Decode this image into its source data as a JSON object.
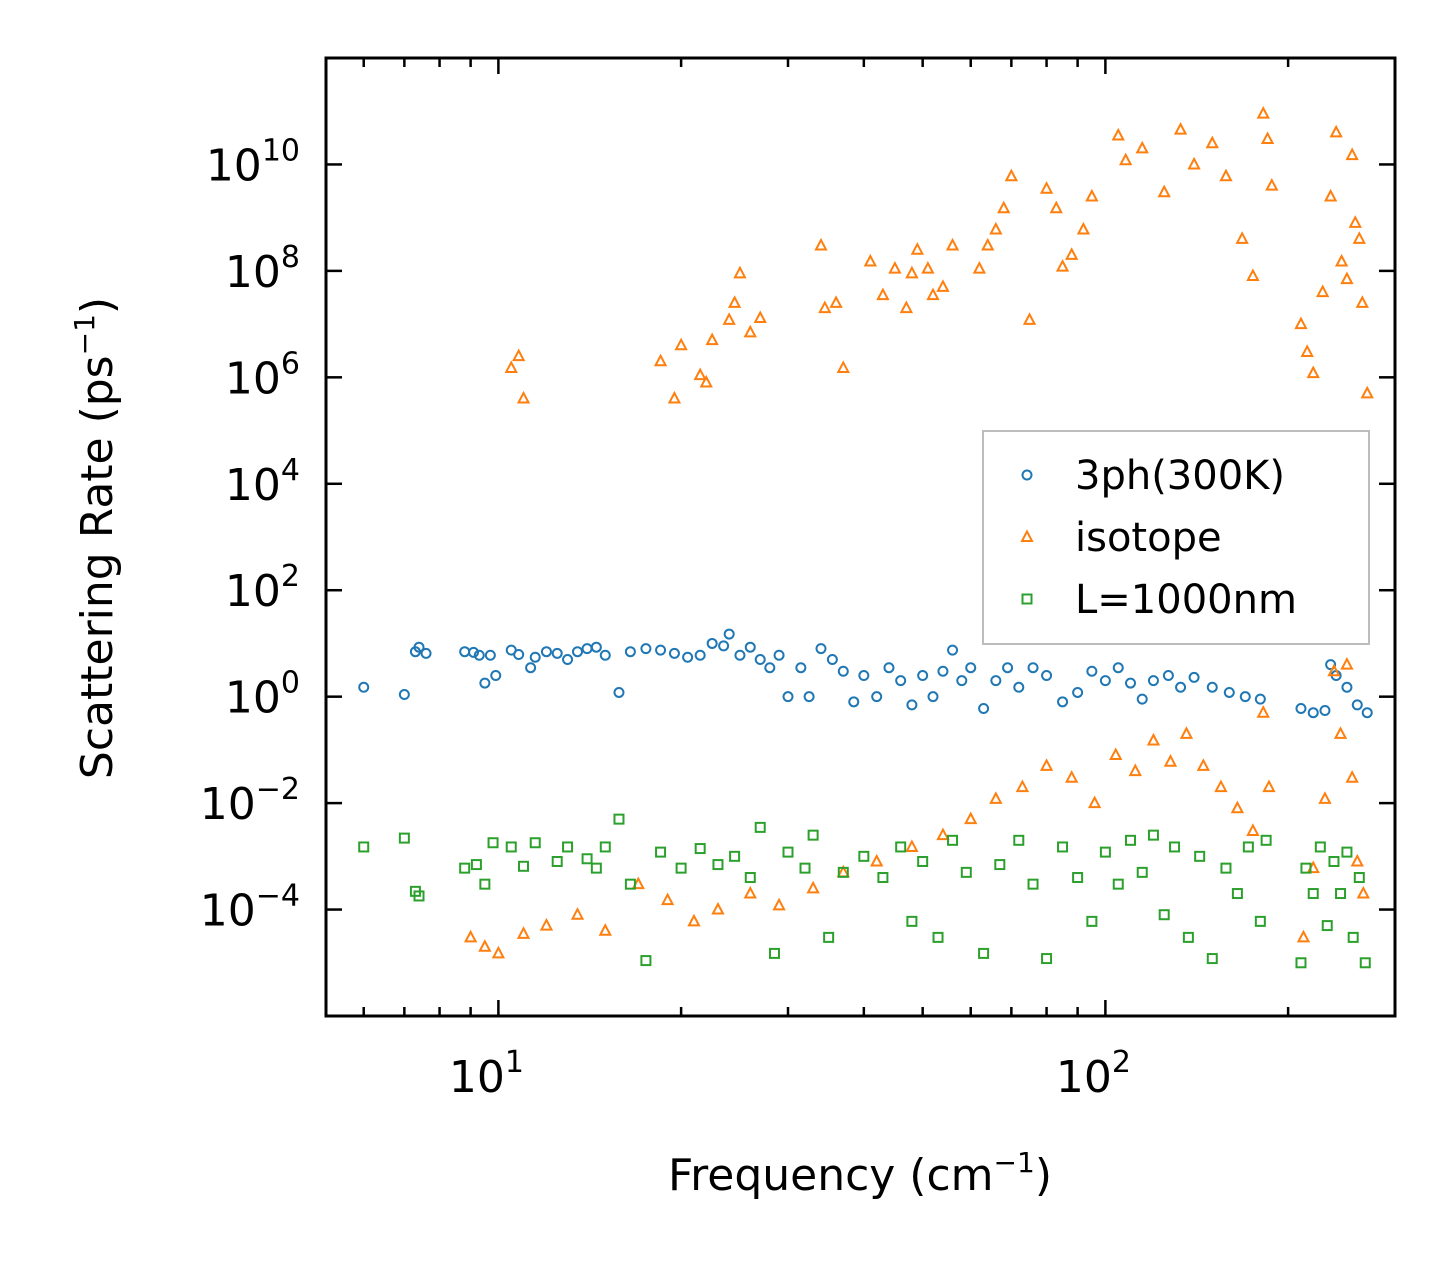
{
  "chart_data": {
    "type": "scatter",
    "title": "",
    "xlabel": "Frequency (cm",
    "xlabel_sup": "−1",
    "xlabel_tail": ")",
    "ylabel": "Scattering Rate (ps",
    "ylabel_sup": "−1",
    "ylabel_tail": ")",
    "xscale": "log",
    "yscale": "log",
    "xlim": [
      5.2,
      300
    ],
    "ylim": [
      1e-06,
      1000000000000.0
    ],
    "x_ticks": [
      {
        "base": "10",
        "exp": "1",
        "value": 10
      },
      {
        "base": "10",
        "exp": "2",
        "value": 100
      }
    ],
    "y_ticks": [
      {
        "base": "10",
        "exp": "10",
        "value": 10000000000.0
      },
      {
        "base": "10",
        "exp": "8",
        "value": 100000000.0
      },
      {
        "base": "10",
        "exp": "6",
        "value": 1000000.0
      },
      {
        "base": "10",
        "exp": "4",
        "value": 10000.0
      },
      {
        "base": "10",
        "exp": "2",
        "value": 100.0
      },
      {
        "base": "10",
        "exp": "0",
        "value": 1
      },
      {
        "base": "10",
        "exp": "−2",
        "value": 0.01
      },
      {
        "base": "10",
        "exp": "−4",
        "value": 0.0001
      }
    ],
    "legend_position": "center-right",
    "series": [
      {
        "name": "3ph(300K)",
        "marker": "circle",
        "color": "#1f77b4",
        "points": [
          [
            6.0,
            1.5
          ],
          [
            7.0,
            1.1
          ],
          [
            7.3,
            7.0
          ],
          [
            7.4,
            8.5
          ],
          [
            7.6,
            6.5
          ],
          [
            8.8,
            7.0
          ],
          [
            9.1,
            6.8
          ],
          [
            9.3,
            6.0
          ],
          [
            9.5,
            1.8
          ],
          [
            9.7,
            6.0
          ],
          [
            9.9,
            2.5
          ],
          [
            10.5,
            7.5
          ],
          [
            10.8,
            6.2
          ],
          [
            11.3,
            3.5
          ],
          [
            11.5,
            5.5
          ],
          [
            12.0,
            7.0
          ],
          [
            12.5,
            6.5
          ],
          [
            13.0,
            5.0
          ],
          [
            13.5,
            7.0
          ],
          [
            14.0,
            8.0
          ],
          [
            14.5,
            8.5
          ],
          [
            15.0,
            6.0
          ],
          [
            15.8,
            1.2
          ],
          [
            16.5,
            7.0
          ],
          [
            17.5,
            8.0
          ],
          [
            18.5,
            7.5
          ],
          [
            19.5,
            6.5
          ],
          [
            20.5,
            5.5
          ],
          [
            21.5,
            6.0
          ],
          [
            22.5,
            10.0
          ],
          [
            23.5,
            9.0
          ],
          [
            24.0,
            15.0
          ],
          [
            25.0,
            6.0
          ],
          [
            26.0,
            8.5
          ],
          [
            27.0,
            5.0
          ],
          [
            28.0,
            3.5
          ],
          [
            29.0,
            6.0
          ],
          [
            30.0,
            1.0
          ],
          [
            31.5,
            3.5
          ],
          [
            32.5,
            1.0
          ],
          [
            34.0,
            8.0
          ],
          [
            35.5,
            5.0
          ],
          [
            37.0,
            3.0
          ],
          [
            38.5,
            0.8
          ],
          [
            40.0,
            2.5
          ],
          [
            42.0,
            1.0
          ],
          [
            44.0,
            3.5
          ],
          [
            46.0,
            2.0
          ],
          [
            48.0,
            0.7
          ],
          [
            50.0,
            2.5
          ],
          [
            52.0,
            1.0
          ],
          [
            54.0,
            3.0
          ],
          [
            56.0,
            7.5
          ],
          [
            58.0,
            2.0
          ],
          [
            60.0,
            3.5
          ],
          [
            63.0,
            0.6
          ],
          [
            66.0,
            2.0
          ],
          [
            69.0,
            3.5
          ],
          [
            72.0,
            1.5
          ],
          [
            76.0,
            3.5
          ],
          [
            80.0,
            2.5
          ],
          [
            85.0,
            0.8
          ],
          [
            90.0,
            1.2
          ],
          [
            95.0,
            3.0
          ],
          [
            100.0,
            2.0
          ],
          [
            105.0,
            3.5
          ],
          [
            110.0,
            1.8
          ],
          [
            115.0,
            0.9
          ],
          [
            120.0,
            2.0
          ],
          [
            127.0,
            2.5
          ],
          [
            133.0,
            1.5
          ],
          [
            140.0,
            2.3
          ],
          [
            150.0,
            1.5
          ],
          [
            160.0,
            1.2
          ],
          [
            170.0,
            1.0
          ],
          [
            180.0,
            0.9
          ],
          [
            210.0,
            0.6
          ],
          [
            220.0,
            0.5
          ],
          [
            230.0,
            0.55
          ],
          [
            235.0,
            4.0
          ],
          [
            240.0,
            2.5
          ],
          [
            250.0,
            1.5
          ],
          [
            260.0,
            0.7
          ],
          [
            270.0,
            0.5
          ]
        ]
      },
      {
        "name": "isotope",
        "marker": "triangle",
        "color": "#ff7f0e",
        "points": [
          [
            10.5,
            1500000.0
          ],
          [
            10.8,
            2500000.0
          ],
          [
            11.0,
            400000.0
          ],
          [
            18.5,
            2000000.0
          ],
          [
            19.5,
            400000.0
          ],
          [
            20.0,
            4000000.0
          ],
          [
            21.5,
            1100000.0
          ],
          [
            22.0,
            800000.0
          ],
          [
            22.5,
            5000000.0
          ],
          [
            24.0,
            12000000.0
          ],
          [
            24.5,
            25000000.0
          ],
          [
            25.0,
            90000000.0
          ],
          [
            26.0,
            7000000.0
          ],
          [
            27.0,
            13000000.0
          ],
          [
            34.0,
            300000000.0
          ],
          [
            34.5,
            20000000.0
          ],
          [
            36.0,
            25000000.0
          ],
          [
            37.0,
            1500000.0
          ],
          [
            41.0,
            150000000.0
          ],
          [
            43.0,
            35000000.0
          ],
          [
            45.0,
            110000000.0
          ],
          [
            47.0,
            20000000.0
          ],
          [
            48.0,
            90000000.0
          ],
          [
            49.0,
            250000000.0
          ],
          [
            51.0,
            110000000.0
          ],
          [
            52.0,
            35000000.0
          ],
          [
            54.0,
            50000000.0
          ],
          [
            56.0,
            300000000.0
          ],
          [
            62.0,
            110000000.0
          ],
          [
            64.0,
            300000000.0
          ],
          [
            66.0,
            600000000.0
          ],
          [
            68.0,
            1500000000.0
          ],
          [
            70.0,
            6000000000.0
          ],
          [
            75.0,
            12000000.0
          ],
          [
            80.0,
            3500000000.0
          ],
          [
            83.0,
            1500000000.0
          ],
          [
            85.0,
            120000000.0
          ],
          [
            88.0,
            200000000.0
          ],
          [
            92.0,
            600000000.0
          ],
          [
            95.0,
            2500000000.0
          ],
          [
            105.0,
            35000000000.0
          ],
          [
            108.0,
            12000000000.0
          ],
          [
            115.0,
            20000000000.0
          ],
          [
            125.0,
            3000000000.0
          ],
          [
            133.0,
            45000000000.0
          ],
          [
            140.0,
            10000000000.0
          ],
          [
            150.0,
            25000000000.0
          ],
          [
            158.0,
            6000000000.0
          ],
          [
            168.0,
            400000000.0
          ],
          [
            175.0,
            80000000.0
          ],
          [
            182.0,
            90000000000.0
          ],
          [
            185.0,
            30000000000.0
          ],
          [
            188.0,
            4000000000.0
          ],
          [
            210.0,
            10000000.0
          ],
          [
            215.0,
            3000000.0
          ],
          [
            220.0,
            1200000.0
          ],
          [
            228.0,
            40000000.0
          ],
          [
            235.0,
            2500000000.0
          ],
          [
            240.0,
            40000000000.0
          ],
          [
            245.0,
            150000000.0
          ],
          [
            250.0,
            70000000.0
          ],
          [
            255.0,
            15000000000.0
          ],
          [
            258.0,
            800000000.0
          ],
          [
            262.0,
            400000000.0
          ],
          [
            265.0,
            25000000.0
          ],
          [
            270.0,
            500000.0
          ],
          [
            9.0,
            3e-05
          ],
          [
            9.5,
            2e-05
          ],
          [
            10.0,
            1.5e-05
          ],
          [
            11.0,
            3.5e-05
          ],
          [
            12.0,
            5e-05
          ],
          [
            13.5,
            8e-05
          ],
          [
            15.0,
            4e-05
          ],
          [
            17.0,
            0.0003
          ],
          [
            19.0,
            0.00015
          ],
          [
            21.0,
            6e-05
          ],
          [
            23.0,
            0.0001
          ],
          [
            26.0,
            0.0002
          ],
          [
            29.0,
            0.00012
          ],
          [
            33.0,
            0.00025
          ],
          [
            37.0,
            0.0005
          ],
          [
            42.0,
            0.0008
          ],
          [
            48.0,
            0.0015
          ],
          [
            54.0,
            0.0025
          ],
          [
            60.0,
            0.005
          ],
          [
            66.0,
            0.012
          ],
          [
            73.0,
            0.02
          ],
          [
            80.0,
            0.05
          ],
          [
            88.0,
            0.03
          ],
          [
            96.0,
            0.01
          ],
          [
            104.0,
            0.08
          ],
          [
            112.0,
            0.04
          ],
          [
            120.0,
            0.15
          ],
          [
            128.0,
            0.06
          ],
          [
            136.0,
            0.2
          ],
          [
            145.0,
            0.05
          ],
          [
            155.0,
            0.02
          ],
          [
            165.0,
            0.008
          ],
          [
            175.0,
            0.003
          ],
          [
            182.0,
            0.5
          ],
          [
            186.0,
            0.02
          ],
          [
            212.0,
            3e-05
          ],
          [
            220.0,
            0.0006
          ],
          [
            230.0,
            0.012
          ],
          [
            238.0,
            3.0
          ],
          [
            244.0,
            0.2
          ],
          [
            250.0,
            4.0
          ],
          [
            255.0,
            0.03
          ],
          [
            260.0,
            0.0008
          ],
          [
            266.0,
            0.0002
          ]
        ]
      },
      {
        "name": "L=1000nm",
        "marker": "square",
        "color": "#2ca02c",
        "points": [
          [
            6.0,
            0.0015
          ],
          [
            7.0,
            0.0022
          ],
          [
            7.3,
            0.00022
          ],
          [
            7.4,
            0.00018
          ],
          [
            8.8,
            0.0006
          ],
          [
            9.2,
            0.0007
          ],
          [
            9.5,
            0.0003
          ],
          [
            9.8,
            0.0018
          ],
          [
            10.5,
            0.0015
          ],
          [
            11.0,
            0.00065
          ],
          [
            11.5,
            0.0018
          ],
          [
            12.5,
            0.0008
          ],
          [
            13.0,
            0.0015
          ],
          [
            14.0,
            0.0009
          ],
          [
            14.5,
            0.0006
          ],
          [
            15.0,
            0.0015
          ],
          [
            15.8,
            0.005
          ],
          [
            16.5,
            0.0003
          ],
          [
            17.5,
            1.1e-05
          ],
          [
            18.5,
            0.0012
          ],
          [
            20.0,
            0.0006
          ],
          [
            21.5,
            0.0014
          ],
          [
            23.0,
            0.0007
          ],
          [
            24.5,
            0.001
          ],
          [
            26.0,
            0.0004
          ],
          [
            27.0,
            0.0035
          ],
          [
            28.5,
            1.5e-05
          ],
          [
            30.0,
            0.0012
          ],
          [
            32.0,
            0.0006
          ],
          [
            33.0,
            0.0025
          ],
          [
            35.0,
            3e-05
          ],
          [
            37.0,
            0.0005
          ],
          [
            40.0,
            0.001
          ],
          [
            43.0,
            0.0004
          ],
          [
            46.0,
            0.0015
          ],
          [
            48.0,
            6e-05
          ],
          [
            50.0,
            0.0008
          ],
          [
            53.0,
            3e-05
          ],
          [
            56.0,
            0.002
          ],
          [
            59.0,
            0.0005
          ],
          [
            63.0,
            1.5e-05
          ],
          [
            67.0,
            0.0007
          ],
          [
            72.0,
            0.002
          ],
          [
            76.0,
            0.0003
          ],
          [
            80.0,
            1.2e-05
          ],
          [
            85.0,
            0.0015
          ],
          [
            90.0,
            0.0004
          ],
          [
            95.0,
            6e-05
          ],
          [
            100.0,
            0.0012
          ],
          [
            105.0,
            0.0003
          ],
          [
            110.0,
            0.002
          ],
          [
            115.0,
            0.0005
          ],
          [
            120.0,
            0.0025
          ],
          [
            125.0,
            8e-05
          ],
          [
            130.0,
            0.0015
          ],
          [
            137.0,
            3e-05
          ],
          [
            143.0,
            0.001
          ],
          [
            150.0,
            1.2e-05
          ],
          [
            158.0,
            0.0006
          ],
          [
            165.0,
            0.0002
          ],
          [
            172.0,
            0.0015
          ],
          [
            180.0,
            6e-05
          ],
          [
            184.0,
            0.002
          ],
          [
            210.0,
            1e-05
          ],
          [
            214.0,
            0.0006
          ],
          [
            220.0,
            0.0002
          ],
          [
            226.0,
            0.0015
          ],
          [
            232.0,
            5e-05
          ],
          [
            238.0,
            0.0008
          ],
          [
            244.0,
            0.0002
          ],
          [
            250.0,
            0.0012
          ],
          [
            256.0,
            3e-05
          ],
          [
            262.0,
            0.0004
          ],
          [
            268.0,
            1e-05
          ]
        ]
      }
    ]
  }
}
